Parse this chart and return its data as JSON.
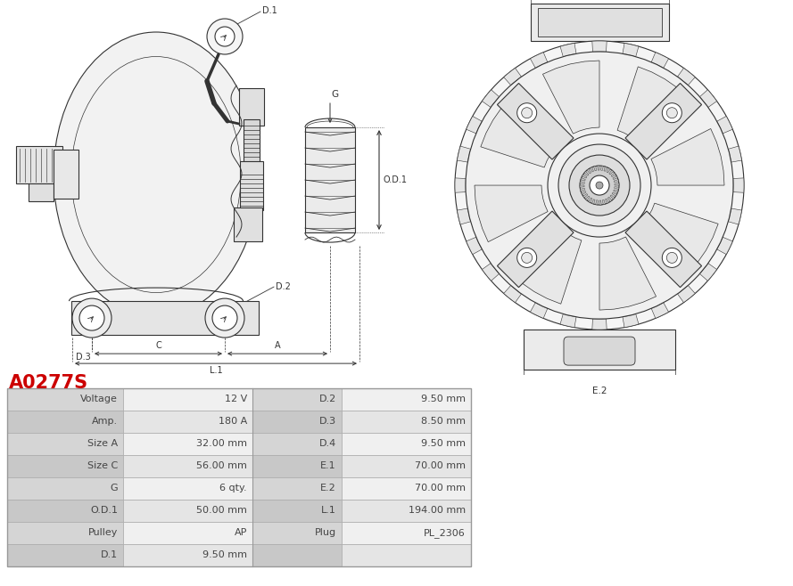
{
  "title": "A0277S",
  "title_color": "#cc0000",
  "bg_color": "#ffffff",
  "table_rows": [
    [
      "Voltage",
      "12 V",
      "D.2",
      "9.50 mm"
    ],
    [
      "Amp.",
      "180 A",
      "D.3",
      "8.50 mm"
    ],
    [
      "Size A",
      "32.00 mm",
      "D.4",
      "9.50 mm"
    ],
    [
      "Size C",
      "56.00 mm",
      "E.1",
      "70.00 mm"
    ],
    [
      "G",
      "6 qty.",
      "E.2",
      "70.00 mm"
    ],
    [
      "O.D.1",
      "50.00 mm",
      "L.1",
      "194.00 mm"
    ],
    [
      "Pulley",
      "AP",
      "Plug",
      "PL_2306"
    ],
    [
      "D.1",
      "9.50 mm",
      "",
      ""
    ]
  ],
  "line_color": "#333333",
  "fill_light": "#f0f0f0",
  "fill_mid": "#e0e0e0",
  "fill_dark": "#cccccc",
  "border_color": "#bbbbbb",
  "text_color": "#555555",
  "font_size": 7.5,
  "lw": 0.8
}
